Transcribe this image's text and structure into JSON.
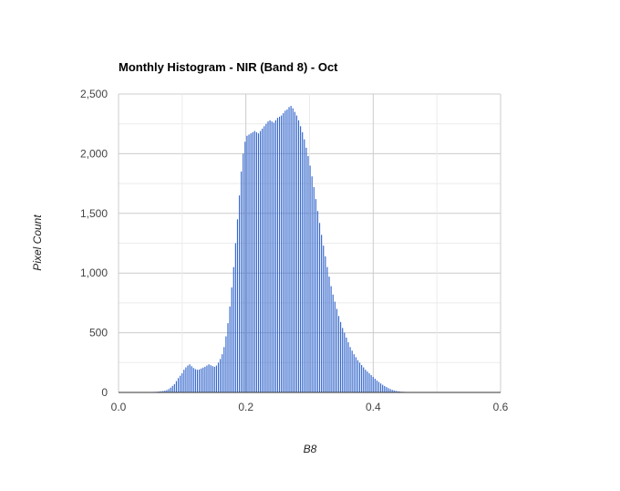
{
  "chart_data": {
    "type": "bar",
    "title": "Monthly Histogram - NIR (Band 8) - Oct",
    "xlabel": "B8",
    "ylabel": "Pixel Count",
    "xlim": [
      0,
      0.6
    ],
    "ylim": [
      0,
      2500
    ],
    "x_ticks": [
      "0.0",
      "0.2",
      "0.4",
      "0.6"
    ],
    "y_ticks": [
      "0",
      "500",
      "1,000",
      "1,500",
      "2,000",
      "2,500"
    ],
    "grid": true,
    "legend": "none",
    "bar_color": "#3366cc",
    "bin_width": 0.003,
    "series": [
      {
        "x": [
          0.045,
          0.048,
          0.051,
          0.054,
          0.057,
          0.06,
          0.063,
          0.066,
          0.069,
          0.072,
          0.075,
          0.078,
          0.081,
          0.084,
          0.087,
          0.09,
          0.093,
          0.096,
          0.099,
          0.102,
          0.105,
          0.108,
          0.111,
          0.114,
          0.117,
          0.12,
          0.123,
          0.126,
          0.129,
          0.132,
          0.135,
          0.138,
          0.141,
          0.144,
          0.147,
          0.15,
          0.153,
          0.156,
          0.159,
          0.162,
          0.165,
          0.168,
          0.171,
          0.174,
          0.177,
          0.18,
          0.183,
          0.186,
          0.189,
          0.192,
          0.195,
          0.198,
          0.201,
          0.204,
          0.207,
          0.21,
          0.213,
          0.216,
          0.219,
          0.222,
          0.225,
          0.228,
          0.231,
          0.234,
          0.237,
          0.24,
          0.243,
          0.246,
          0.249,
          0.252,
          0.255,
          0.258,
          0.261,
          0.264,
          0.267,
          0.27,
          0.273,
          0.276,
          0.279,
          0.282,
          0.285,
          0.288,
          0.291,
          0.294,
          0.297,
          0.3,
          0.303,
          0.306,
          0.309,
          0.312,
          0.315,
          0.318,
          0.321,
          0.324,
          0.327,
          0.33,
          0.333,
          0.336,
          0.339,
          0.342,
          0.345,
          0.348,
          0.351,
          0.354,
          0.357,
          0.36,
          0.363,
          0.366,
          0.369,
          0.372,
          0.375,
          0.378,
          0.381,
          0.384,
          0.387,
          0.39,
          0.393,
          0.396,
          0.399,
          0.402,
          0.405,
          0.408,
          0.411,
          0.414,
          0.417,
          0.42,
          0.423,
          0.426,
          0.429,
          0.432,
          0.435,
          0.438,
          0.441,
          0.444,
          0.447,
          0.45,
          0.453,
          0.456,
          0.459,
          0.462,
          0.465,
          0.468,
          0.471,
          0.474,
          0.477,
          0.48,
          0.483
        ],
        "values": [
          2,
          3,
          3,
          4,
          5,
          6,
          8,
          10,
          12,
          15,
          20,
          28,
          40,
          55,
          70,
          95,
          120,
          140,
          160,
          190,
          210,
          225,
          235,
          220,
          205,
          195,
          190,
          192,
          200,
          208,
          215,
          225,
          235,
          228,
          220,
          215,
          225,
          250,
          280,
          320,
          380,
          470,
          580,
          720,
          880,
          1050,
          1250,
          1450,
          1650,
          1850,
          2000,
          2100,
          2150,
          2160,
          2170,
          2180,
          2190,
          2180,
          2170,
          2190,
          2210,
          2230,
          2250,
          2270,
          2280,
          2270,
          2260,
          2280,
          2300,
          2310,
          2320,
          2340,
          2360,
          2370,
          2390,
          2400,
          2380,
          2350,
          2320,
          2280,
          2230,
          2180,
          2120,
          2050,
          1980,
          1900,
          1810,
          1720,
          1620,
          1520,
          1420,
          1320,
          1230,
          1140,
          1050,
          970,
          890,
          820,
          760,
          700,
          640,
          590,
          540,
          500,
          460,
          420,
          380,
          350,
          320,
          295,
          270,
          250,
          230,
          210,
          190,
          175,
          160,
          145,
          130,
          115,
          100,
          88,
          75,
          64,
          54,
          45,
          36,
          28,
          22,
          17,
          13,
          10,
          8,
          6,
          5,
          4,
          3,
          3,
          2,
          2,
          2,
          1,
          1,
          1,
          1,
          1,
          1
        ]
      }
    ]
  }
}
